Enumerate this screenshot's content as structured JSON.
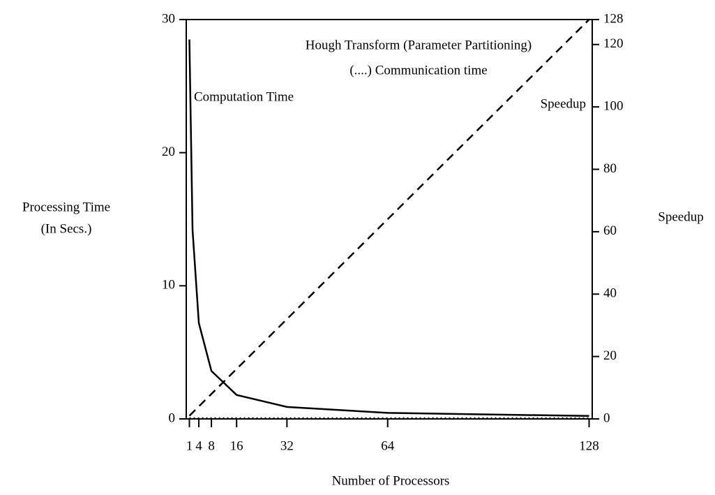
{
  "chart_data": {
    "type": "line",
    "title": "Hough Transform (Parameter Partitioning)",
    "x_label": "Number of Processors",
    "y_label": [
      "Processing Time",
      "(In Secs.)"
    ],
    "y2_label": "Speedup",
    "xlim": [
      0,
      129
    ],
    "xticks": [
      1,
      4,
      8,
      16,
      32,
      64,
      128
    ],
    "ylim": [
      0,
      30
    ],
    "yticks": [
      0,
      10,
      20,
      30
    ],
    "y2lim": [
      0,
      128
    ],
    "y2ticks": [
      0,
      20,
      40,
      60,
      80,
      100,
      120,
      128
    ],
    "x": [
      1,
      2,
      4,
      8,
      16,
      32,
      64,
      128
    ],
    "series": [
      {
        "name": "Computation Time",
        "color": "#000000",
        "dash": "solid",
        "values": [
          28.5,
          14.2,
          7.2,
          3.6,
          1.8,
          0.9,
          0.45,
          0.22
        ]
      },
      {
        "name": "(....) Communication time",
        "color": "#000000",
        "dash": "dotted",
        "values": [
          0.05,
          0.05,
          0.05,
          0.05,
          0.05,
          0.05,
          0.05,
          0.05
        ]
      },
      {
        "name": "Speedup",
        "color": "#000000",
        "dash": "dashed",
        "axis": "y2",
        "values": [
          1,
          2,
          4,
          8,
          16,
          32,
          64,
          128
        ]
      }
    ]
  }
}
